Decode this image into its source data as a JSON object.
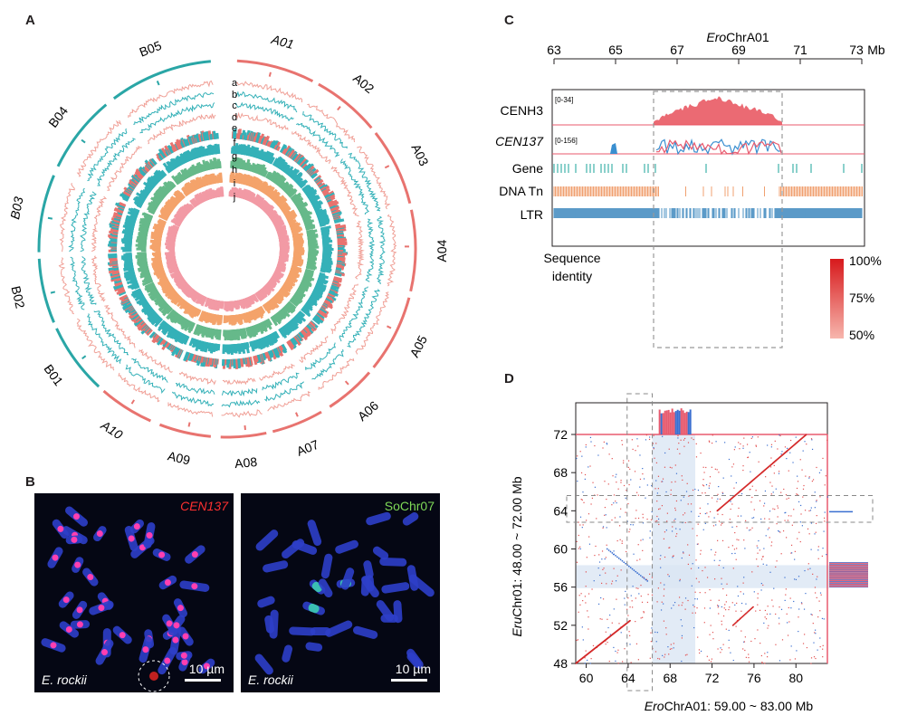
{
  "panels": {
    "a": "A",
    "b": "B",
    "c": "C",
    "d": "D"
  },
  "circos": {
    "chromosomes": [
      "A01",
      "A02",
      "A03",
      "A04",
      "A05",
      "A06",
      "A07",
      "A08",
      "A09",
      "A10",
      "B01",
      "B02",
      "B03",
      "B04",
      "B05"
    ],
    "track_letters": [
      "a",
      "b",
      "c",
      "d",
      "e",
      "f",
      "g",
      "h",
      "i",
      "j"
    ],
    "colors": {
      "A": "#e8736f",
      "B": "#2aa6a6",
      "t_salmon": "#f0a097",
      "t_teal": "#35b1b8",
      "t_green": "#66b98a",
      "t_orange": "#f4a36b",
      "t_pink": "#f29aa5"
    }
  },
  "micrographs": [
    {
      "probe": "CEN137",
      "probe_color": "#ff3030",
      "species": "E. rockii",
      "scale": "10 µm"
    },
    {
      "probe": "SoChr07",
      "probe_color": "#7ed957",
      "species": "E. rockii",
      "scale": "10 µm"
    }
  ],
  "panel_c": {
    "title_italic": "Ero",
    "title_rest": "ChrA01",
    "ticks": [
      "63",
      "65",
      "67",
      "69",
      "71",
      "73"
    ],
    "unit": "Mb",
    "tracks": [
      {
        "label": "CENH3",
        "range": "[0-34]"
      },
      {
        "label": "CEN137",
        "range": "[0-156]"
      },
      {
        "label": "Gene"
      },
      {
        "label": "DNA Tn"
      },
      {
        "label": "LTR"
      }
    ],
    "identity_label_1": "Sequence",
    "identity_label_2": "identity",
    "legend": [
      "100%",
      "75%",
      "50%"
    ],
    "colors": {
      "cenh3": "#e8505a",
      "cen137_red": "#e85a6e",
      "cen137_blue": "#3a8fd0",
      "gene": "#1aa398",
      "dna": "#f0a070",
      "ltr": "#5b9ac8"
    }
  },
  "panel_d": {
    "xticks": [
      "60",
      "64",
      "68",
      "72",
      "76",
      "80"
    ],
    "yticks": [
      "72",
      "68",
      "64",
      "60",
      "56",
      "52",
      "48"
    ],
    "xlabel_italic": "Ero",
    "xlabel_rest": "ChrA01: 59.00 ~ 83.00 Mb",
    "ylabel_italic": "Eru",
    "ylabel_rest": "Chr01: 48.00 ~ 72.00 Mb"
  }
}
